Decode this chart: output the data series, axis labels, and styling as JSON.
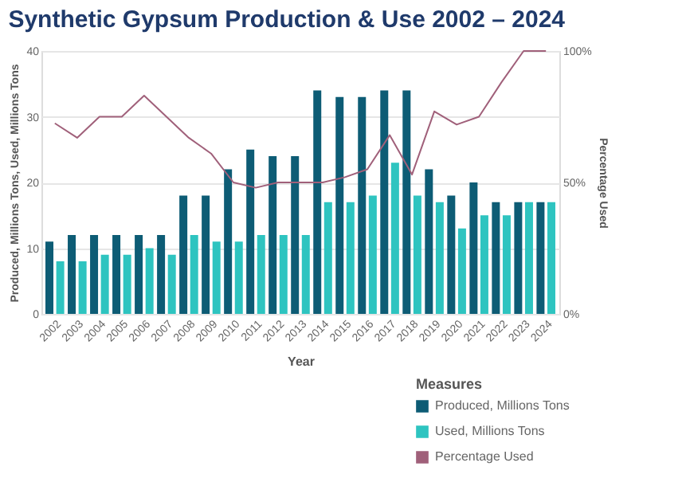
{
  "chart_data": {
    "type": "bar",
    "title": "Synthetic Gypsum Production & Use 2002 – 2024",
    "xlabel": "Year",
    "ylabel": "Produced, Millions Tons, Used, Millions Tons",
    "y2label": "Percentage Used",
    "legend_title": "Measures",
    "categories": [
      "2002",
      "2003",
      "2004",
      "2005",
      "2006",
      "2007",
      "2008",
      "2009",
      "2010",
      "2011",
      "2012",
      "2013",
      "2014",
      "2015",
      "2016",
      "2017",
      "2018",
      "2019",
      "2020",
      "2021",
      "2022",
      "2023",
      "2024"
    ],
    "series": [
      {
        "name": "Produced, Millions Tons",
        "color": "#0d5c75",
        "values": [
          11,
          12,
          12,
          12,
          12,
          12,
          18,
          18,
          22,
          25,
          24,
          24,
          34,
          33,
          33,
          34,
          34,
          22,
          18,
          20,
          17,
          17,
          17
        ]
      },
      {
        "name": "Used, Millions Tons",
        "color": "#2ec4c0",
        "values": [
          8,
          8,
          9,
          9,
          10,
          9,
          12,
          11,
          11,
          12,
          12,
          12,
          17,
          17,
          18,
          23,
          18,
          17,
          13,
          15,
          15,
          17,
          17
        ]
      },
      {
        "name": "Percentage Used",
        "color": "#a0607a",
        "type": "line",
        "axis": "y2",
        "line_style": "solid",
        "values": [
          72.5,
          67,
          75,
          75,
          83,
          75,
          67,
          61,
          50,
          48,
          50,
          50,
          50,
          52,
          55,
          68,
          53,
          77,
          72,
          75,
          88,
          100,
          100
        ]
      }
    ],
    "ylim": [
      0,
      40
    ],
    "yticks": [
      0,
      10,
      20,
      30,
      40
    ],
    "y2lim": [
      0,
      100
    ],
    "y2ticks": [
      {
        "value": 0,
        "label": "0%"
      },
      {
        "value": 50,
        "label": "50%"
      },
      {
        "value": 100,
        "label": "100%"
      }
    ],
    "grid": "y",
    "legend": "bottom right",
    "marker": "none"
  }
}
